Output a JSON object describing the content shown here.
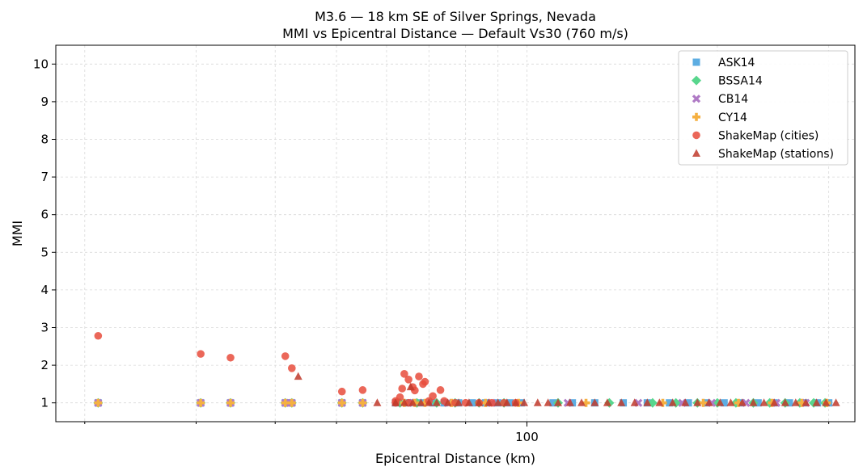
{
  "chart_data": {
    "type": "scatter",
    "title": "M3.6 — 18 km SE of Silver Springs, Nevada",
    "subtitle": "MMI vs Epicentral Distance — Default Vs30 (760 m/s)",
    "xlabel": "Epicentral Distance (km)",
    "ylabel": "MMI",
    "xscale": "log",
    "xlim": [
      18,
      330
    ],
    "ylim": [
      0.5,
      10.5
    ],
    "yticks": [
      1,
      2,
      3,
      4,
      5,
      6,
      7,
      8,
      9,
      10
    ],
    "xticks_labeled": [
      100
    ],
    "xticks_minor": [
      20,
      30,
      40,
      50,
      60,
      70,
      80,
      90,
      200,
      300
    ],
    "grid": true,
    "legend_position": "top-right",
    "series": [
      {
        "name": "ASK14",
        "marker": "square",
        "color": "#5DADE2",
        "x": [
          21,
          30.5,
          34,
          41.5,
          42.5,
          51,
          55,
          62,
          65,
          68,
          71,
          74,
          78,
          82,
          86,
          90,
          94,
          98,
          110,
          118,
          128,
          142,
          155,
          168,
          180,
          192,
          205,
          218,
          232,
          246,
          260,
          274,
          288,
          300
        ],
        "y": [
          1,
          1,
          1,
          1,
          1,
          1,
          1,
          1,
          1,
          1,
          1,
          1,
          1,
          1,
          1,
          1,
          1,
          1,
          1,
          1,
          1,
          1,
          1,
          1,
          1,
          1,
          1,
          1,
          1,
          1,
          1,
          1,
          1,
          1
        ]
      },
      {
        "name": "BSSA14",
        "marker": "diamond",
        "color": "#58D68D",
        "x": [
          21,
          30.5,
          34,
          41.5,
          42.5,
          51,
          55,
          63,
          67,
          72,
          77,
          84,
          92,
          112,
          135,
          158,
          172,
          186,
          200,
          214,
          228,
          242,
          256,
          270,
          284,
          296
        ],
        "y": [
          1,
          1,
          1,
          1,
          1,
          1,
          1,
          1,
          1,
          1,
          1,
          1,
          1,
          1,
          1,
          1,
          1,
          1,
          1,
          1,
          1,
          1,
          1,
          1,
          1,
          1
        ]
      },
      {
        "name": "CB14",
        "marker": "x",
        "color": "#AF7AC5",
        "x": [
          21,
          30.5,
          34,
          41.5,
          42.5,
          51,
          55,
          66,
          75,
          88,
          116,
          150,
          176,
          196,
          222,
          248,
          276
        ],
        "y": [
          1,
          1,
          1,
          1,
          1,
          1,
          1,
          1,
          1,
          1,
          1,
          1,
          1,
          1,
          1,
          1,
          1
        ]
      },
      {
        "name": "CY14",
        "marker": "plus",
        "color": "#F5B041",
        "x": [
          21,
          30.5,
          34,
          41.5,
          42.5,
          51,
          55,
          64,
          66.5,
          69,
          76,
          86,
          97,
          124,
          164,
          190,
          216,
          244,
          272,
          298
        ],
        "y": [
          1,
          1,
          1,
          1,
          1,
          1,
          1,
          1,
          1,
          1,
          1,
          1,
          1,
          1,
          1,
          1,
          1,
          1,
          1,
          1
        ]
      },
      {
        "name": "ShakeMap (cities)",
        "marker": "circle",
        "color": "#E74C3C",
        "x": [
          21,
          30.5,
          34,
          41.5,
          42.5,
          51,
          55,
          62,
          63,
          63.5,
          64,
          65,
          66,
          66.5,
          67.5,
          68.5,
          69,
          71,
          73,
          74,
          77,
          80,
          84,
          88,
          92,
          96,
          62,
          65,
          70
        ],
        "y": [
          2.78,
          2.3,
          2.2,
          2.24,
          1.92,
          1.3,
          1.34,
          1.0,
          1.15,
          1.38,
          1.77,
          1.62,
          1.42,
          1.33,
          1.7,
          1.5,
          1.56,
          1.18,
          1.34,
          1.05,
          1.0,
          1.0,
          1.0,
          1.0,
          1.0,
          1.0,
          1.05,
          1.0,
          1.05
        ]
      },
      {
        "name": "ShakeMap (stations)",
        "marker": "triangle",
        "color": "#C0392B",
        "x": [
          43.5,
          58,
          62,
          64,
          66,
          68,
          70,
          72,
          75,
          78,
          81,
          84,
          87,
          90,
          93,
          96,
          99,
          104,
          108,
          112,
          117,
          122,
          128,
          134,
          141,
          148,
          155,
          162,
          170,
          178,
          186,
          194,
          202,
          210,
          219,
          228,
          237,
          246,
          256,
          266,
          276,
          287,
          297,
          308,
          65.5
        ],
        "y": [
          1.7,
          1.0,
          1.0,
          1.0,
          1.0,
          1.0,
          1.0,
          1.0,
          1.0,
          1.0,
          1.0,
          1.0,
          1.0,
          1.0,
          1.0,
          1.0,
          1.0,
          1.0,
          1.0,
          1.0,
          1.0,
          1.0,
          1.0,
          1.0,
          1.0,
          1.0,
          1.0,
          1.0,
          1.0,
          1.0,
          1.0,
          1.0,
          1.0,
          1.0,
          1.0,
          1.0,
          1.0,
          1.0,
          1.0,
          1.0,
          1.0,
          1.0,
          1.0,
          1.0,
          1.42
        ]
      }
    ]
  }
}
